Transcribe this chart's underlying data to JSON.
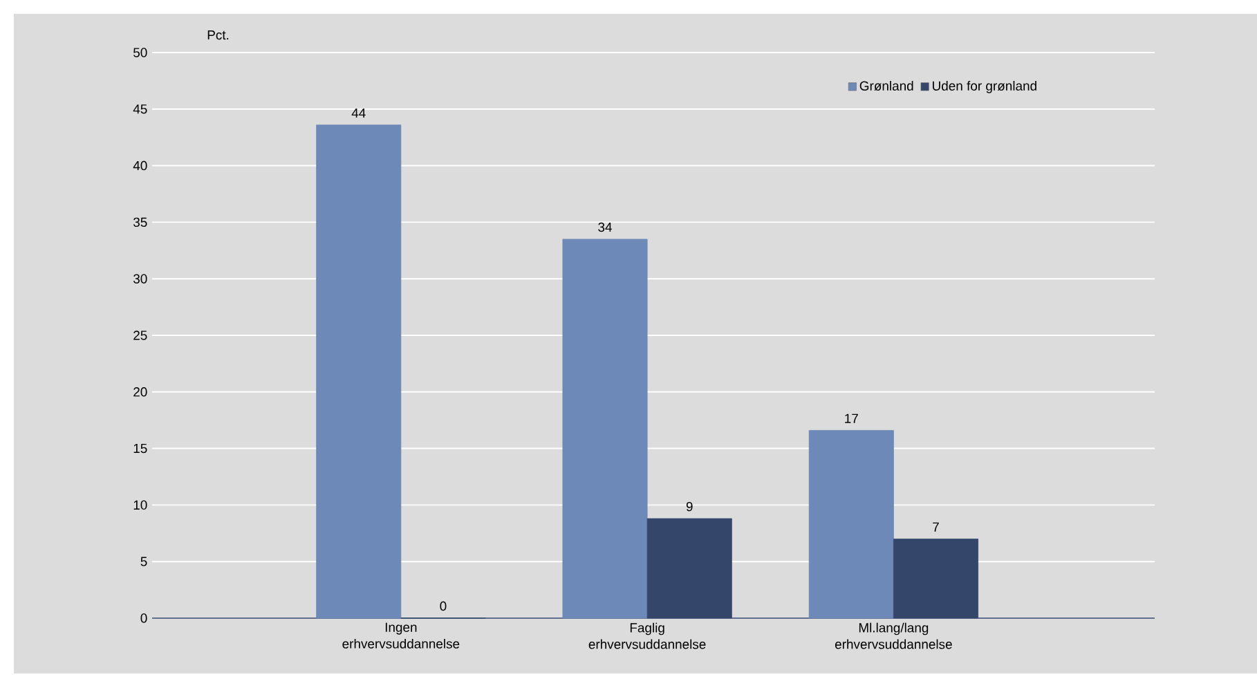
{
  "chart_data": {
    "type": "bar",
    "ylabel": "Pct.",
    "categories": [
      "Ingen erhvervsuddannelse",
      "Faglig erhvervsuddannelse",
      "Ml.lang/lang erhvervsuddannelse"
    ],
    "series": [
      {
        "name": "Grønland",
        "color": "#6d89b8",
        "values": [
          43.6,
          33.5,
          16.6
        ],
        "value_labels": [
          "44",
          "34",
          "17"
        ]
      },
      {
        "name": "Uden for grønland",
        "color": "#34466a",
        "values": [
          0,
          8.8,
          7.0
        ],
        "value_labels": [
          "0",
          "9",
          "7"
        ]
      }
    ],
    "ylim": [
      0,
      50
    ],
    "yticks": [
      0,
      5,
      10,
      15,
      20,
      25,
      30,
      35,
      40,
      45,
      50
    ],
    "grid": "y",
    "legend": "top right"
  }
}
